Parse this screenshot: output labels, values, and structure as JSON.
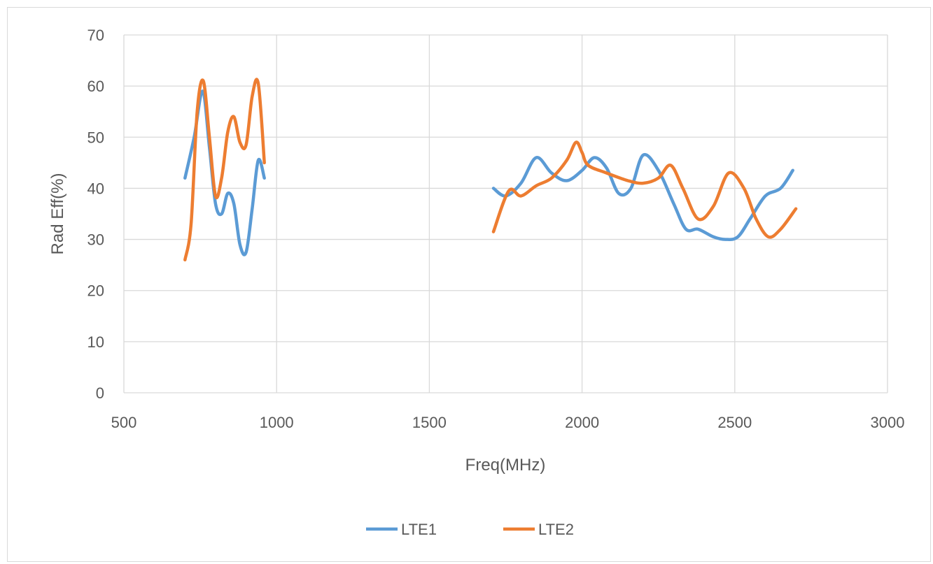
{
  "chart_data": {
    "type": "line",
    "title": "",
    "xlabel": "Freq(MHz)",
    "ylabel": "Rad Eff(%)",
    "xlim": [
      500,
      3000
    ],
    "ylim": [
      0,
      70
    ],
    "xticks": [
      500,
      1000,
      1500,
      2000,
      2500,
      3000
    ],
    "yticks": [
      0,
      10,
      20,
      30,
      40,
      50,
      60,
      70
    ],
    "grid": true,
    "legend_position": "bottom",
    "series": [
      {
        "name": "LTE1",
        "color": "#5b9bd5",
        "segments": [
          [
            [
              700,
              42
            ],
            [
              730,
              50
            ],
            [
              758,
              59
            ],
            [
              780,
              48
            ],
            [
              800,
              37
            ],
            [
              820,
              35
            ],
            [
              840,
              39
            ],
            [
              860,
              37
            ],
            [
              880,
              29
            ],
            [
              900,
              27.5
            ],
            [
              920,
              36
            ],
            [
              940,
              45.5
            ],
            [
              960,
              42
            ]
          ],
          [
            [
              1710,
              40
            ],
            [
              1750,
              38.5
            ],
            [
              1800,
              41
            ],
            [
              1850,
              46
            ],
            [
              1900,
              43
            ],
            [
              1950,
              41.5
            ],
            [
              2000,
              43.5
            ],
            [
              2040,
              46
            ],
            [
              2080,
              44
            ],
            [
              2120,
              39
            ],
            [
              2160,
              40
            ],
            [
              2200,
              46.5
            ],
            [
              2250,
              43.5
            ],
            [
              2300,
              37
            ],
            [
              2340,
              32
            ],
            [
              2380,
              32
            ],
            [
              2430,
              30.5
            ],
            [
              2470,
              30
            ],
            [
              2510,
              30.5
            ],
            [
              2550,
              34
            ],
            [
              2600,
              38.5
            ],
            [
              2650,
              40
            ],
            [
              2690,
              43.5
            ]
          ]
        ]
      },
      {
        "name": "LTE2",
        "color": "#ed7d31",
        "segments": [
          [
            [
              700,
              26
            ],
            [
              720,
              33
            ],
            [
              740,
              55
            ],
            [
              760,
              61
            ],
            [
              780,
              50
            ],
            [
              800,
              38.5
            ],
            [
              820,
              42
            ],
            [
              840,
              51
            ],
            [
              860,
              54
            ],
            [
              880,
              49
            ],
            [
              900,
              48.5
            ],
            [
              920,
              58
            ],
            [
              940,
              60.5
            ],
            [
              960,
              45
            ]
          ],
          [
            [
              1710,
              31.5
            ],
            [
              1760,
              39.5
            ],
            [
              1800,
              38.5
            ],
            [
              1850,
              40.5
            ],
            [
              1900,
              42
            ],
            [
              1950,
              45.5
            ],
            [
              1980,
              49
            ],
            [
              2000,
              47
            ],
            [
              2020,
              44.5
            ],
            [
              2080,
              43
            ],
            [
              2150,
              41.5
            ],
            [
              2200,
              41
            ],
            [
              2250,
              42
            ],
            [
              2290,
              44.5
            ],
            [
              2330,
              40
            ],
            [
              2380,
              34
            ],
            [
              2430,
              36.5
            ],
            [
              2480,
              43
            ],
            [
              2530,
              40
            ],
            [
              2570,
              34
            ],
            [
              2610,
              30.5
            ],
            [
              2650,
              32
            ],
            [
              2700,
              36
            ]
          ]
        ]
      }
    ]
  }
}
